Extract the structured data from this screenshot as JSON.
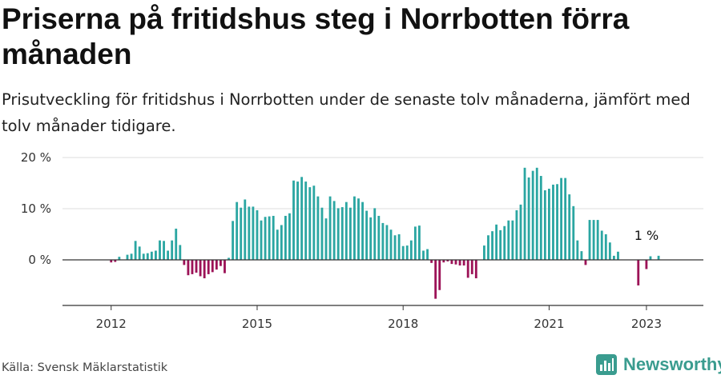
{
  "title": "Priserna på fritidshus steg i Norrbotten förra månaden",
  "subtitle": "Prisutveckling för fritidshus i Norrbotten under de senaste tolv månaderna, jämfört med tolv månader tidigare.",
  "source": "Källa: Svensk Mäklarstatistik",
  "brand": "Newsworthy",
  "colors": {
    "positive": "#2ba6a2",
    "negative": "#9c1257",
    "brand": "#3a9c8f"
  },
  "chart_data": {
    "type": "bar",
    "title": "Priserna på fritidshus steg i Norrbotten förra månaden",
    "xlabel": "",
    "ylabel": "",
    "ylim": [
      -9,
      20
    ],
    "xlim": [
      2011.0,
      2024.17
    ],
    "y_ticks": [
      0,
      10,
      20
    ],
    "y_tick_labels": [
      "0 %",
      "10 %",
      "20 %"
    ],
    "x_ticks": [
      2012,
      2015,
      2018,
      2021,
      2023
    ],
    "x_tick_labels": [
      "2012",
      "2015",
      "2018",
      "2021",
      "2023"
    ],
    "series_start": 2012.0,
    "step_years": 0.08333,
    "values": [
      -0.5,
      -0.4,
      0.6,
      0.0,
      1.0,
      1.2,
      3.7,
      2.6,
      1.2,
      1.3,
      1.6,
      1.8,
      3.8,
      3.7,
      1.8,
      3.8,
      6.1,
      2.9,
      -1.0,
      -3.0,
      -2.8,
      -2.5,
      -3.2,
      -3.6,
      -2.8,
      -2.4,
      -1.9,
      -1.2,
      -2.6,
      0.4,
      7.6,
      11.3,
      10.2,
      11.8,
      10.4,
      10.4,
      9.7,
      7.7,
      8.4,
      8.5,
      8.6,
      5.9,
      6.8,
      8.6,
      9.1,
      15.5,
      15.3,
      16.2,
      15.3,
      14.2,
      14.5,
      12.4,
      10.2,
      8.1,
      12.4,
      11.5,
      10.1,
      10.3,
      11.3,
      10.2,
      12.4,
      12.0,
      11.3,
      9.6,
      8.3,
      10.1,
      8.6,
      7.2,
      6.8,
      5.9,
      4.8,
      5.0,
      2.7,
      2.8,
      3.8,
      6.5,
      6.7,
      1.8,
      2.1,
      -0.6,
      -7.6,
      -5.9,
      -0.5,
      -0.3,
      -0.8,
      -0.9,
      -1.1,
      -1.1,
      -3.5,
      -2.8,
      -3.6,
      0.0,
      2.8,
      4.8,
      5.6,
      6.9,
      5.8,
      6.6,
      7.7,
      7.7,
      9.7,
      10.8,
      18.0,
      16.1,
      17.4,
      18.0,
      16.4,
      13.6,
      13.9,
      14.7,
      14.8,
      16.0,
      16.0,
      12.8,
      10.5,
      3.8,
      1.7,
      -1.0,
      7.8,
      7.8,
      7.8,
      5.7,
      5.0,
      3.4,
      0.8,
      1.6,
      0.0,
      0.0,
      0.0,
      0.0,
      -5.0,
      0.0,
      -1.8,
      0.7,
      0.0,
      0.8
    ],
    "annotations": [
      {
        "text": "1 %",
        "x": 2023.0,
        "y": 0.8
      }
    ]
  }
}
